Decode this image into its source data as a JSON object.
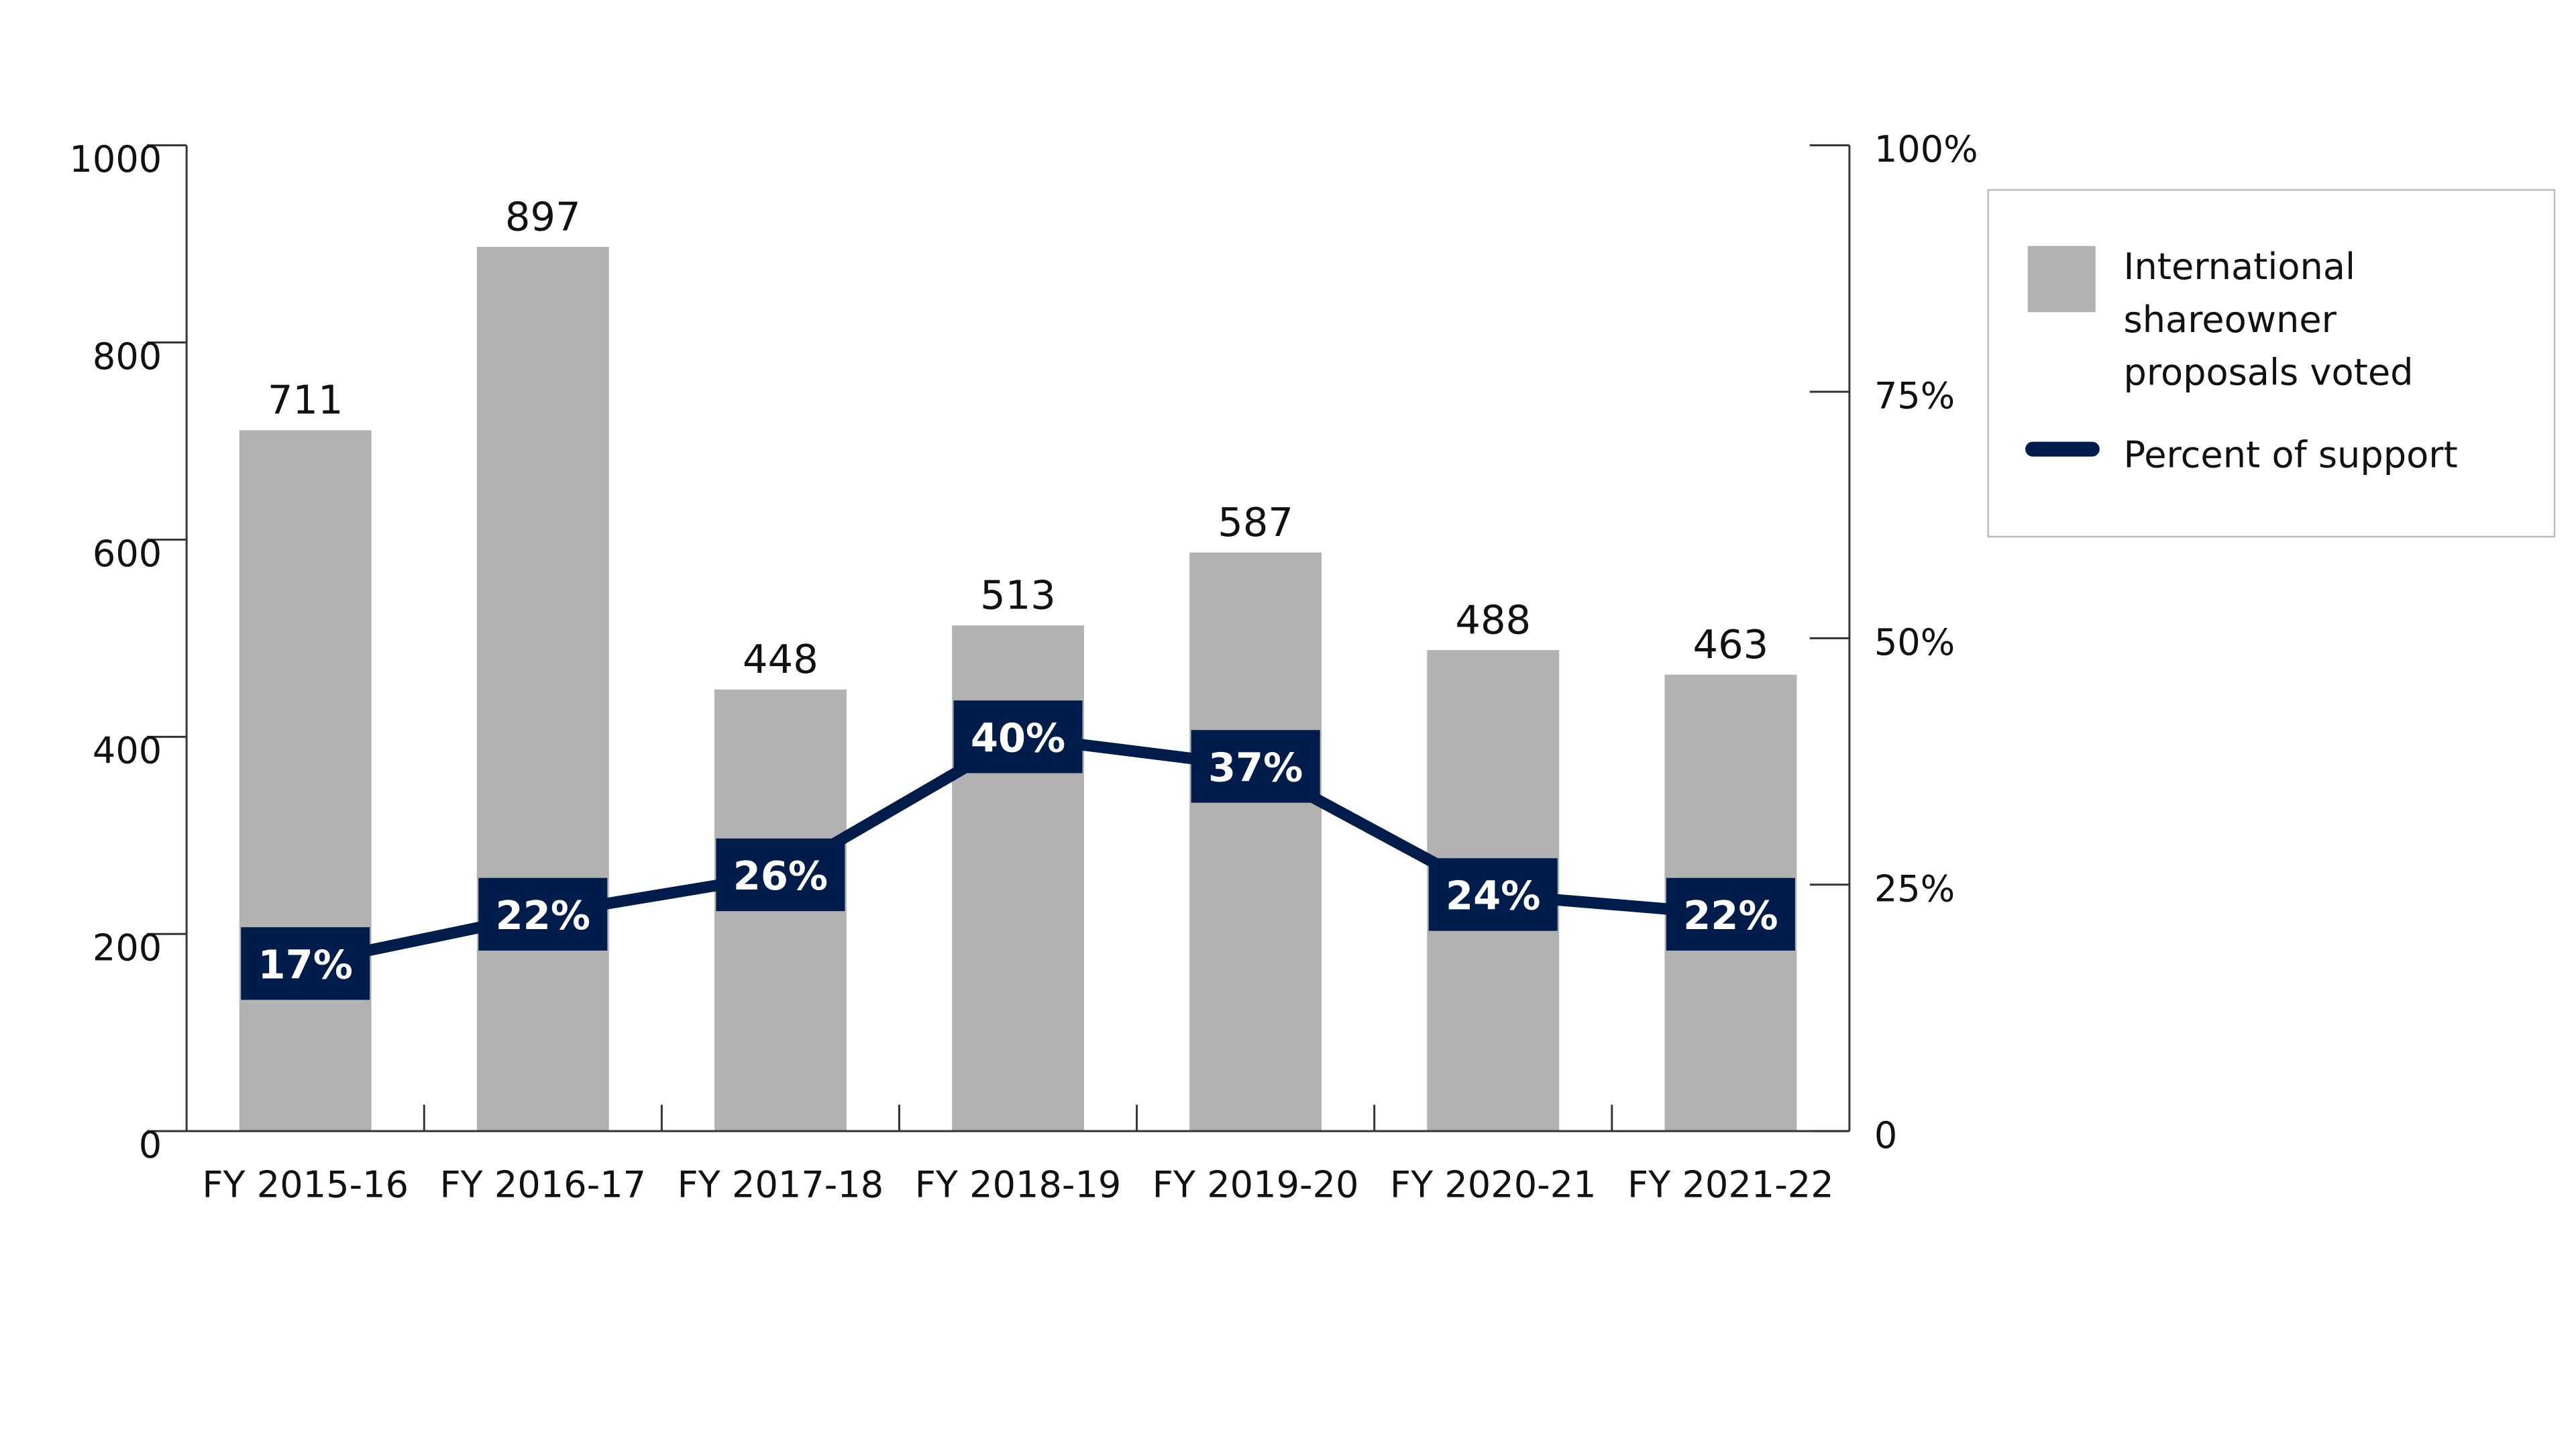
{
  "chart_data": {
    "type": "bar",
    "title": "",
    "categories": [
      "FY 2015-16",
      "FY 2016-17",
      "FY 2017-18",
      "FY 2018-19",
      "FY 2019-20",
      "FY 2020-21",
      "FY 2021-22"
    ],
    "series": [
      {
        "name": "International shareowner proposals voted",
        "type": "bar",
        "axis": "left",
        "color": "#b2b2b2",
        "values": [
          711,
          897,
          448,
          513,
          587,
          488,
          463
        ],
        "labels": [
          "711",
          "897",
          "448",
          "513",
          "587",
          "488",
          "463"
        ]
      },
      {
        "name": "Percent of support",
        "type": "line",
        "axis": "right",
        "color": "#001c4a",
        "values": [
          17,
          22,
          26,
          40,
          37,
          24,
          22
        ],
        "labels": [
          "17%",
          "22%",
          "26%",
          "40%",
          "37%",
          "24%",
          "22%"
        ]
      }
    ],
    "left_axis": {
      "ylim": [
        0,
        1000
      ],
      "ticks": [
        0,
        200,
        400,
        600,
        800,
        1000
      ],
      "tick_labels": [
        "0",
        "200",
        "400",
        "600",
        "800",
        "1000"
      ]
    },
    "right_axis": {
      "ylim": [
        0,
        100
      ],
      "ticks": [
        0,
        25,
        50,
        75,
        100
      ],
      "tick_labels": [
        "0",
        "25%",
        "50%",
        "75%",
        "100%"
      ]
    },
    "legend": {
      "placement": "right",
      "items": [
        {
          "lines": [
            "International",
            "shareowner",
            "proposals voted"
          ],
          "swatch": "bar"
        },
        {
          "lines": [
            "Percent of support"
          ],
          "swatch": "line"
        }
      ]
    },
    "grid": false
  }
}
